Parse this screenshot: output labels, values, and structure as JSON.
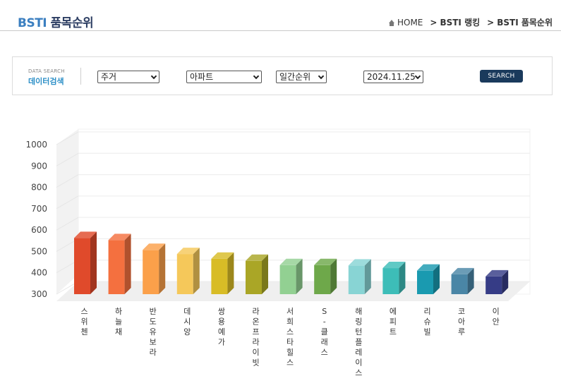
{
  "header": {
    "brand_prefix": "BSTI",
    "brand_suffix": " 품목순위",
    "crumb_home": "HOME",
    "crumb_1": "BSTI 랭킹",
    "crumb_2": "BSTI 품목순위"
  },
  "search": {
    "label_en": "DATA SEARCH",
    "label_ko": "데이터검색",
    "category": "주거",
    "item": "아파트",
    "ranking_type": "일간순위",
    "date": "2024.11.25",
    "button_label": "SEARCH"
  },
  "chart_data": {
    "type": "bar",
    "title": "",
    "xlabel": "",
    "ylabel": "",
    "ylim": [
      300,
      1000
    ],
    "yticks": [
      300,
      400,
      500,
      600,
      700,
      800,
      900,
      1000
    ],
    "grid": true,
    "categories": [
      "스위첸",
      "하늘채",
      "반도유보라",
      "데시앙",
      "쌍용예가",
      "라온프라이빗",
      "서희스타힐스",
      "S-클래스",
      "해링턴플레이스",
      "에피트",
      "리슈빌",
      "코아루",
      "이안"
    ],
    "values": [
      563,
      553,
      507,
      488,
      466,
      456,
      436,
      436,
      434,
      422,
      410,
      393,
      383
    ],
    "colors": [
      "#e04a2b",
      "#f4703f",
      "#fba04a",
      "#f5c85a",
      "#d8bc26",
      "#aaa626",
      "#92d092",
      "#6ea84a",
      "#88d4d4",
      "#3dbdb8",
      "#1a9ab0",
      "#4a86a6",
      "#363c86"
    ]
  }
}
